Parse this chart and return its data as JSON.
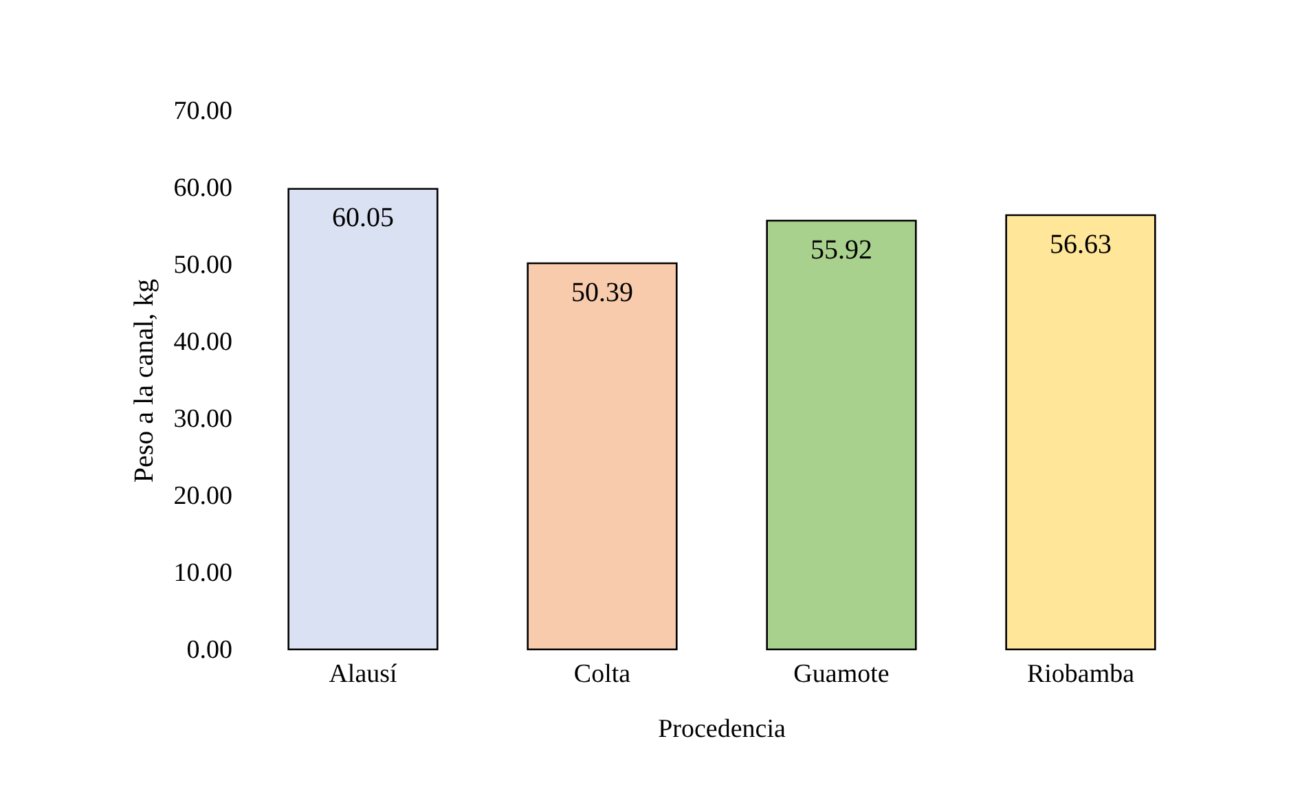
{
  "chart_data": {
    "type": "bar",
    "xlabel": "Procedencia",
    "ylabel": "Peso a la canal, kg",
    "categories": [
      "Alausí",
      "Colta",
      "Guamote",
      "Riobamba"
    ],
    "values": [
      60.05,
      50.39,
      55.92,
      56.63
    ],
    "colors": [
      "#dae1f2",
      "#f8cbad",
      "#a9d18e",
      "#ffe699"
    ],
    "ylim": [
      0,
      70
    ],
    "yticks": [
      {
        "value": 0,
        "label": "0.00"
      },
      {
        "value": 10,
        "label": "10.00"
      },
      {
        "value": 20,
        "label": "20.00"
      },
      {
        "value": 30,
        "label": "30.00"
      },
      {
        "value": 40,
        "label": "40.00"
      },
      {
        "value": 50,
        "label": "50.00"
      },
      {
        "value": 60,
        "label": "60.00"
      },
      {
        "value": 70,
        "label": "70.00"
      }
    ],
    "data_labels": true,
    "grid": false
  }
}
